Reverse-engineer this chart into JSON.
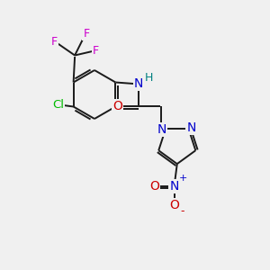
{
  "bg_color": "#f0f0f0",
  "bond_color": "#1a1a1a",
  "atom_colors": {
    "N": "#0000cc",
    "O": "#cc0000",
    "F": "#cc00cc",
    "Cl": "#00bb00",
    "C": "#1a1a1a",
    "H": "#008080"
  },
  "font_size": 9,
  "bond_width": 1.4
}
